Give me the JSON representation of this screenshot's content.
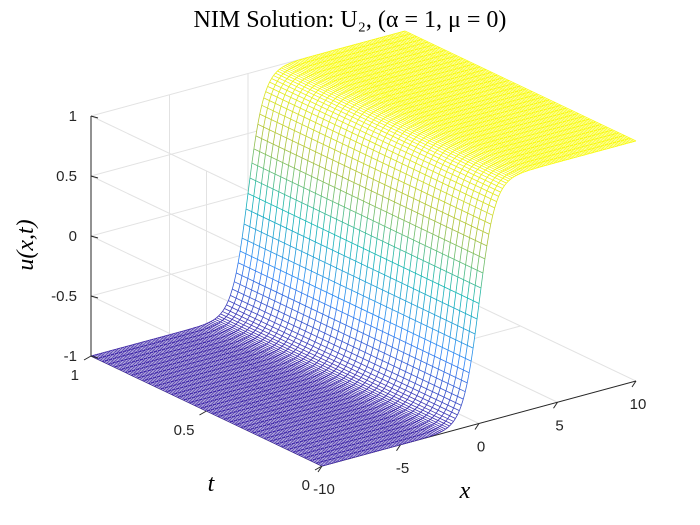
{
  "chart_data": {
    "type": "surface",
    "title": "NIM Solution: U₂, (α = 1, μ = 0)",
    "xlabel": "x",
    "ylabel": "t",
    "zlabel": "u(x,t)",
    "xlim": [
      -10,
      10
    ],
    "ylim": [
      0,
      1
    ],
    "zlim": [
      -1,
      1
    ],
    "x_ticks": [
      "-10",
      "-5",
      "0",
      "5",
      "10"
    ],
    "y_ticks": [
      "0",
      "0.5",
      "1"
    ],
    "z_ticks": [
      "-1",
      "-0.5",
      "0",
      "0.5",
      "1"
    ],
    "function": "u(x,t) = tanh(x)",
    "x": [
      -10,
      -8,
      -6,
      -4,
      -3,
      -2,
      -1.5,
      -1,
      -0.5,
      0,
      0.5,
      1,
      1.5,
      2,
      3,
      4,
      6,
      8,
      10
    ],
    "u": [
      -1,
      -1,
      -1,
      -0.9993,
      -0.9951,
      -0.964,
      -0.9051,
      -0.7616,
      -0.4621,
      0,
      0.4621,
      0.7616,
      0.9051,
      0.964,
      0.9951,
      0.9993,
      1,
      1,
      1
    ],
    "grid": true,
    "colormap": "parula",
    "style": "mesh"
  }
}
